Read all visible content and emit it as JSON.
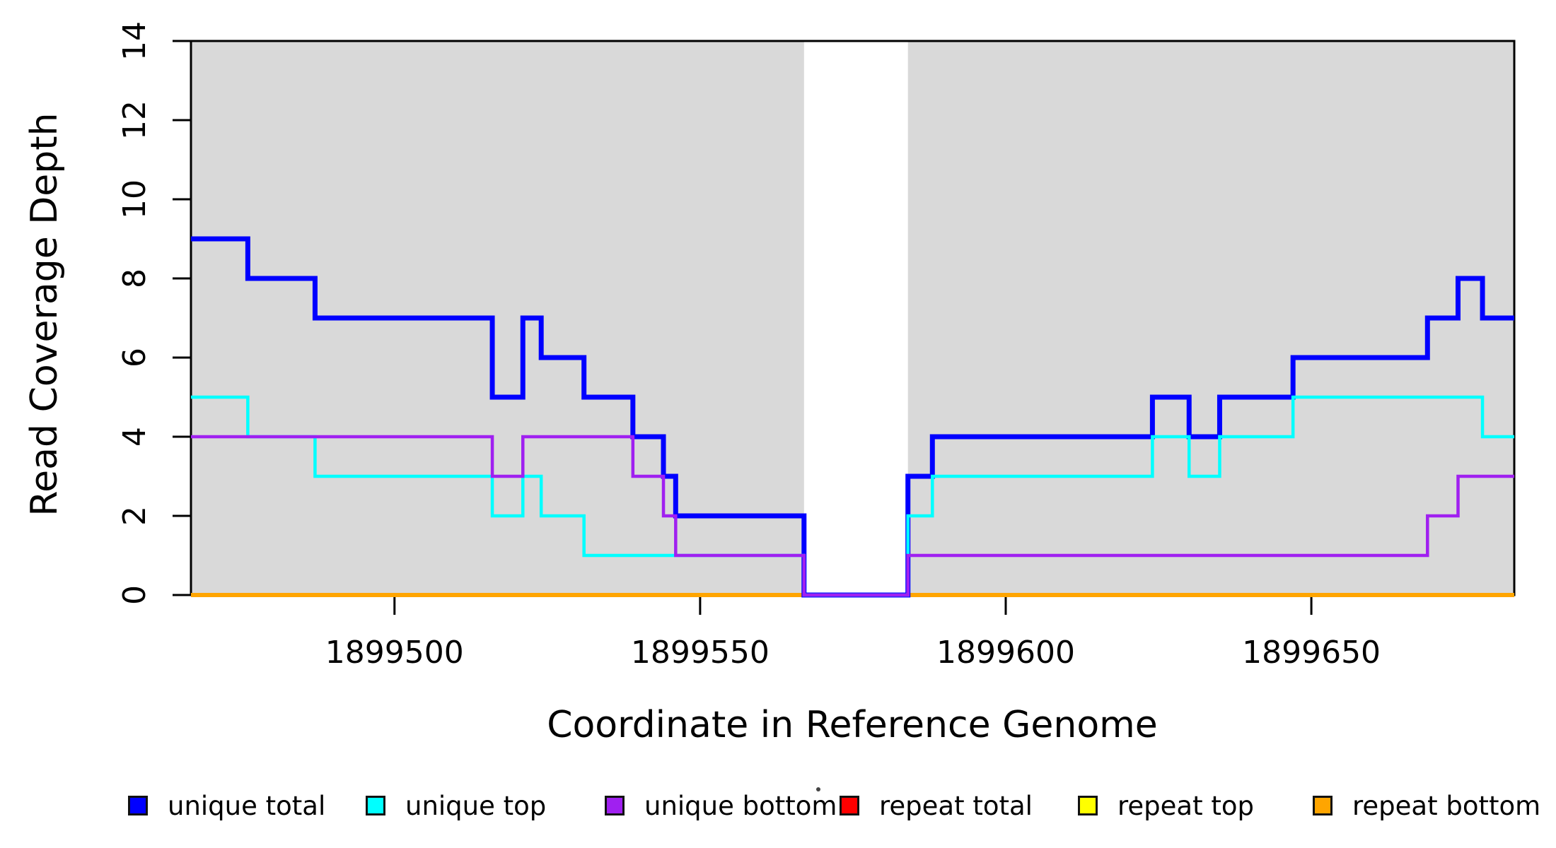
{
  "chart_data": {
    "type": "line",
    "subtype": "step",
    "title": "",
    "xlabel": "Coordinate in Reference Genome",
    "ylabel": "Read Coverage Depth",
    "xlim": [
      1899466.7,
      1899683.2
    ],
    "ylim": [
      0,
      14
    ],
    "x_ticks": [
      1899500,
      1899550,
      1899600,
      1899650
    ],
    "y_ticks": [
      0,
      2,
      4,
      6,
      8,
      10,
      12,
      14
    ],
    "grid": false,
    "legend_position": "bottom",
    "background_color": "#ffffff",
    "shade_color": "#d9d9d9",
    "shaded_regions": [
      [
        1899466.7,
        1899567
      ],
      [
        1899584,
        1899683.2
      ]
    ],
    "series": [
      {
        "name": "repeat total",
        "color": "#ff0000",
        "width": 6,
        "steps": [
          [
            1899466.7,
            0
          ]
        ]
      },
      {
        "name": "repeat top",
        "color": "#ffff00",
        "width": 6,
        "steps": [
          [
            1899466.7,
            0
          ]
        ]
      },
      {
        "name": "repeat bottom",
        "color": "#ffa500",
        "width": 6,
        "steps": [
          [
            1899466.7,
            0
          ]
        ]
      },
      {
        "name": "unique total",
        "color": "#0000ff",
        "width": 7,
        "steps": [
          [
            1899466.7,
            9
          ],
          [
            1899476,
            8
          ],
          [
            1899487,
            7
          ],
          [
            1899516,
            5
          ],
          [
            1899521,
            7
          ],
          [
            1899524,
            6
          ],
          [
            1899531,
            5
          ],
          [
            1899539,
            4
          ],
          [
            1899544,
            3
          ],
          [
            1899546,
            2
          ],
          [
            1899567,
            0
          ],
          [
            1899584,
            3
          ],
          [
            1899588,
            4
          ],
          [
            1899624,
            5
          ],
          [
            1899630,
            4
          ],
          [
            1899635,
            5
          ],
          [
            1899647,
            6
          ],
          [
            1899669,
            7
          ],
          [
            1899674,
            8
          ],
          [
            1899678,
            7
          ]
        ]
      },
      {
        "name": "unique top",
        "color": "#00ffff",
        "width": 4.5,
        "steps": [
          [
            1899466.7,
            5
          ],
          [
            1899476,
            4
          ],
          [
            1899487,
            3
          ],
          [
            1899516,
            2
          ],
          [
            1899521,
            3
          ],
          [
            1899524,
            2
          ],
          [
            1899531,
            1
          ],
          [
            1899567,
            0
          ],
          [
            1899584,
            2
          ],
          [
            1899588,
            3
          ],
          [
            1899624,
            4
          ],
          [
            1899630,
            3
          ],
          [
            1899635,
            4
          ],
          [
            1899647,
            5
          ],
          [
            1899678,
            4
          ]
        ]
      },
      {
        "name": "unique bottom",
        "color": "#a020f0",
        "width": 4.5,
        "steps": [
          [
            1899466.7,
            4
          ],
          [
            1899516,
            3
          ],
          [
            1899521,
            4
          ],
          [
            1899539,
            3
          ],
          [
            1899544,
            2
          ],
          [
            1899546,
            1
          ],
          [
            1899567,
            0
          ],
          [
            1899584,
            1
          ],
          [
            1899669,
            2
          ],
          [
            1899674,
            3
          ]
        ]
      }
    ],
    "legend": [
      {
        "label": "unique total",
        "color": "#0000ff"
      },
      {
        "label": "unique top",
        "color": "#00ffff"
      },
      {
        "label": "unique bottom",
        "color": "#a020f0"
      },
      {
        "label": "repeat total",
        "color": "#ff0000"
      },
      {
        "label": "repeat top",
        "color": "#ffff00"
      },
      {
        "label": "repeat bottom",
        "color": "#ffa500"
      }
    ]
  }
}
